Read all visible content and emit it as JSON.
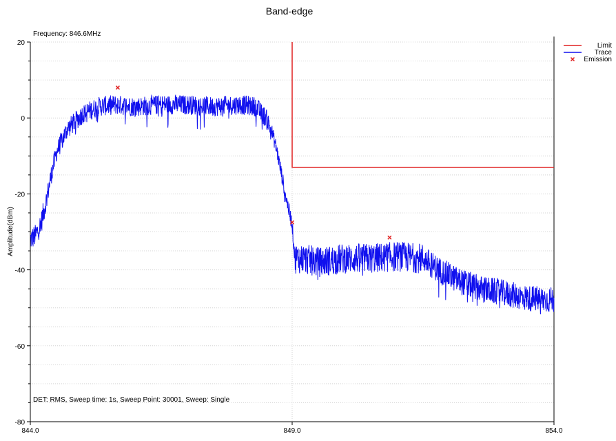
{
  "chart_data": {
    "type": "line",
    "title": "Band-edge",
    "xlabel": "",
    "ylabel": "Amplitude(dBm)",
    "xlim": [
      844.0,
      854.0
    ],
    "ylim": [
      -80,
      20
    ],
    "x_tick_labels": [
      "844.0",
      "849.0",
      "854.0"
    ],
    "x_ticks": [
      844.0,
      849.0,
      854.0
    ],
    "y_tick_labels": [
      "20",
      "0",
      "-20",
      "-40",
      "-60",
      "-80"
    ],
    "y_ticks": [
      20,
      0,
      -20,
      -40,
      -60,
      -80
    ],
    "grid": true,
    "legend_position": "top-right",
    "annotations": {
      "frequency": "Frequency: 846.6MHz",
      "settings": "DET: RMS, Sweep time: 1s, Sweep Point: 30001, Sweep: Single"
    },
    "series": [
      {
        "name": "Limit",
        "color": "#e02020",
        "x": [
          849.0,
          849.0,
          854.0
        ],
        "y": [
          20,
          -13,
          -13
        ]
      },
      {
        "name": "Trace",
        "color": "#1010ee",
        "x": [
          844.0,
          844.1,
          844.2,
          844.3,
          844.4,
          844.5,
          844.7,
          845.0,
          845.3,
          845.6,
          846.0,
          846.5,
          847.0,
          847.5,
          848.0,
          848.3,
          848.5,
          848.6,
          848.7,
          848.8,
          848.9,
          849.0,
          849.05,
          849.2,
          849.5,
          850.0,
          850.5,
          851.0,
          851.5,
          851.8,
          852.2,
          852.6,
          853.0,
          853.5,
          854.0
        ],
        "y": [
          -32,
          -31,
          -28,
          -22,
          -15,
          -9,
          -3,
          1,
          3,
          3.5,
          3,
          3.5,
          3.5,
          3,
          3.5,
          3,
          0,
          -3,
          -8,
          -15,
          -22,
          -28,
          -37,
          -37,
          -38,
          -37,
          -37,
          -36.5,
          -37,
          -40,
          -43,
          -45,
          -46,
          -47.5,
          -48
        ]
      },
      {
        "name": "Emission",
        "color": "#e02020",
        "x": [
          845.67,
          849.0,
          850.86
        ],
        "y": [
          8.0,
          -27.5,
          -31.5
        ]
      }
    ]
  }
}
